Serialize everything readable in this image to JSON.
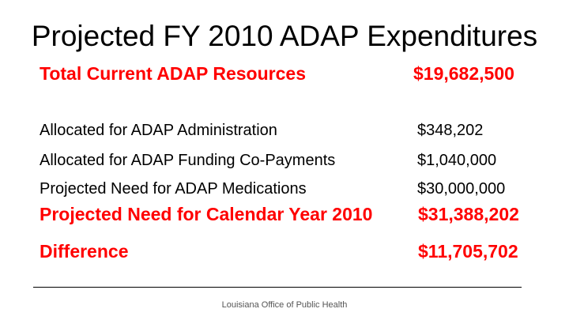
{
  "title": "Projected FY 2010 ADAP Expenditures",
  "resources": {
    "label": "Total Current ADAP Resources",
    "amount": "$19,682,500"
  },
  "allocations": [
    {
      "label": "Allocated for ADAP Administration",
      "amount": "$348,202"
    },
    {
      "label": "Allocated for ADAP Funding Co-Payments",
      "amount": "$1,040,000"
    },
    {
      "label": "Projected Need for ADAP Medications",
      "amount": "$30,000,000"
    }
  ],
  "projected": {
    "label": "Projected Need for Calendar Year 2010",
    "amount": "$31,388,202"
  },
  "difference": {
    "label": "Difference",
    "amount": "$11,705,702"
  },
  "footer": "Louisiana Office of Public Health",
  "colors": {
    "highlight": "#ff0000",
    "text": "#000000"
  }
}
